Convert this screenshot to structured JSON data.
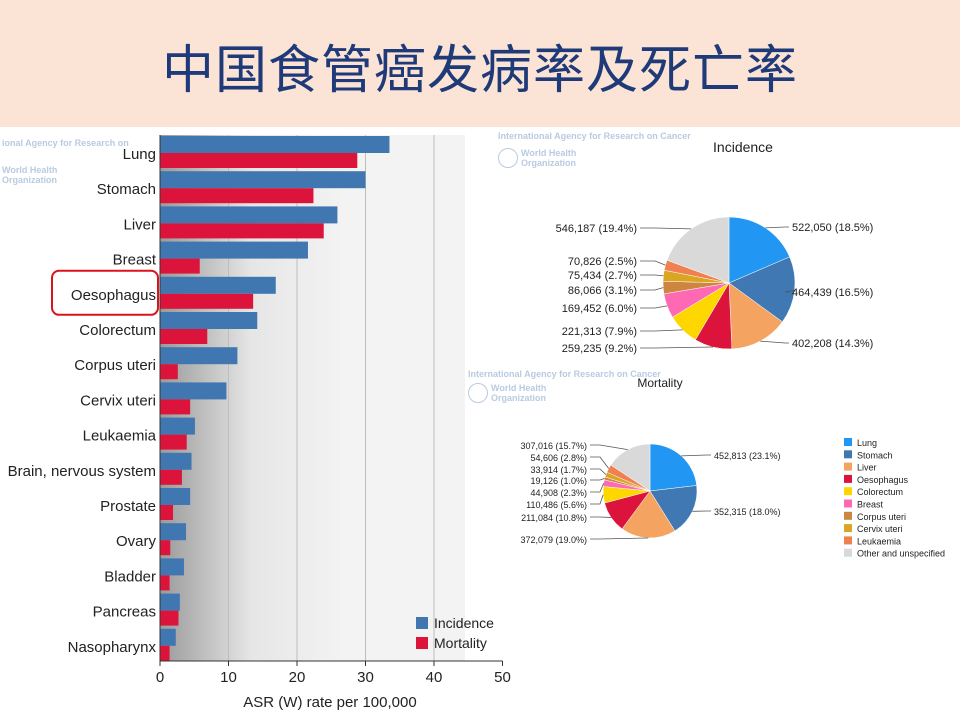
{
  "slide": {
    "title": "中国食管癌发病率及死亡率"
  },
  "watermarks": {
    "bar_agency": "ional Agency for Research on",
    "bar_who": "World Health Organization",
    "inc_agency": "International Agency for Research on Cancer",
    "inc_who": "World Health Organization",
    "mort_agency": "International Agency for Research on Cancer",
    "mort_who": "World Health Organization"
  },
  "colors": {
    "incidence": "#4177b1",
    "mortality": "#dc143c",
    "highlight": "#d9141b",
    "pie": [
      "#2196f3",
      "#3f78b3",
      "#f4a460",
      "#dc143c",
      "#ffd700",
      "#ff69b4",
      "#cd853f",
      "#daa520",
      "#f08050",
      "#d9d9d9"
    ]
  },
  "chart_data": [
    {
      "type": "bar",
      "orientation": "horizontal",
      "categories": [
        "Lung",
        "Stomach",
        "Liver",
        "Breast",
        "Oesophagus",
        "Colorectum",
        "Corpus uteri",
        "Cervix uteri",
        "Leukaemia",
        "Brain, nervous system",
        "Prostate",
        "Ovary",
        "Bladder",
        "Pancreas",
        "Nasopharynx"
      ],
      "series": [
        {
          "name": "Incidence",
          "values": [
            33.5,
            30.0,
            25.9,
            21.6,
            16.9,
            14.2,
            11.3,
            9.7,
            5.1,
            4.6,
            4.4,
            3.8,
            3.5,
            2.9,
            2.3
          ]
        },
        {
          "name": "Mortality",
          "values": [
            28.8,
            22.4,
            23.9,
            5.8,
            13.6,
            6.9,
            2.6,
            4.4,
            3.9,
            3.2,
            1.9,
            1.5,
            1.4,
            2.7,
            1.4
          ]
        }
      ],
      "xlabel": "ASR (W) rate per 100,000",
      "xlim": [
        0,
        50
      ],
      "xticks": [
        0,
        10,
        20,
        30,
        40,
        50
      ],
      "highlighted_category": "Oesophagus",
      "legend_position": "bottom-right"
    },
    {
      "type": "pie",
      "title": "Incidence",
      "slices": [
        {
          "name": "Lung",
          "value": 522050,
          "label": "522,050 (18.5%)"
        },
        {
          "name": "Stomach",
          "value": 464439,
          "label": "464,439 (16.5%)"
        },
        {
          "name": "Liver",
          "value": 402208,
          "label": "402,208 (14.3%)"
        },
        {
          "name": "Oesophagus",
          "value": 259235,
          "label": "259,235 (9.2%)"
        },
        {
          "name": "Colorectum",
          "value": 221313,
          "label": "221,313 (7.9%)"
        },
        {
          "name": "Breast",
          "value": 169452,
          "label": "169,452 (6.0%)"
        },
        {
          "name": "Corpus uteri",
          "value": 86066,
          "label": "86,066 (3.1%)"
        },
        {
          "name": "Cervix uteri",
          "value": 75434,
          "label": "75,434 (2.7%)"
        },
        {
          "name": "Leukaemia",
          "value": 70826,
          "label": "70,826 (2.5%)"
        },
        {
          "name": "Other and unspecified",
          "value": 546187,
          "label": "546,187 (19.4%)"
        }
      ]
    },
    {
      "type": "pie",
      "title": "Mortality",
      "slices": [
        {
          "name": "Lung",
          "value": 452813,
          "label": "452,813 (23.1%)"
        },
        {
          "name": "Stomach",
          "value": 352315,
          "label": "352,315 (18.0%)"
        },
        {
          "name": "Liver",
          "value": 372079,
          "label": "372,079 (19.0%)"
        },
        {
          "name": "Oesophagus",
          "value": 211084,
          "label": "211,084 (10.8%)"
        },
        {
          "name": "Colorectum",
          "value": 110486,
          "label": "110,486 (5.6%)"
        },
        {
          "name": "Breast",
          "value": 44908,
          "label": "44,908 (2.3%)"
        },
        {
          "name": "Corpus uteri",
          "value": 19126,
          "label": "19,126 (1.0%)"
        },
        {
          "name": "Cervix uteri",
          "value": 33914,
          "label": "33,914 (1.7%)"
        },
        {
          "name": "Leukaemia",
          "value": 54606,
          "label": "54,606 (2.8%)"
        },
        {
          "name": "Other and unspecified",
          "value": 307016,
          "label": "307,016 (15.7%)"
        }
      ],
      "legend": [
        "Lung",
        "Stomach",
        "Liver",
        "Oesophagus",
        "Colorectum",
        "Breast",
        "Corpus uteri",
        "Cervix uteri",
        "Leukaemia",
        "Other and unspecified"
      ]
    }
  ]
}
